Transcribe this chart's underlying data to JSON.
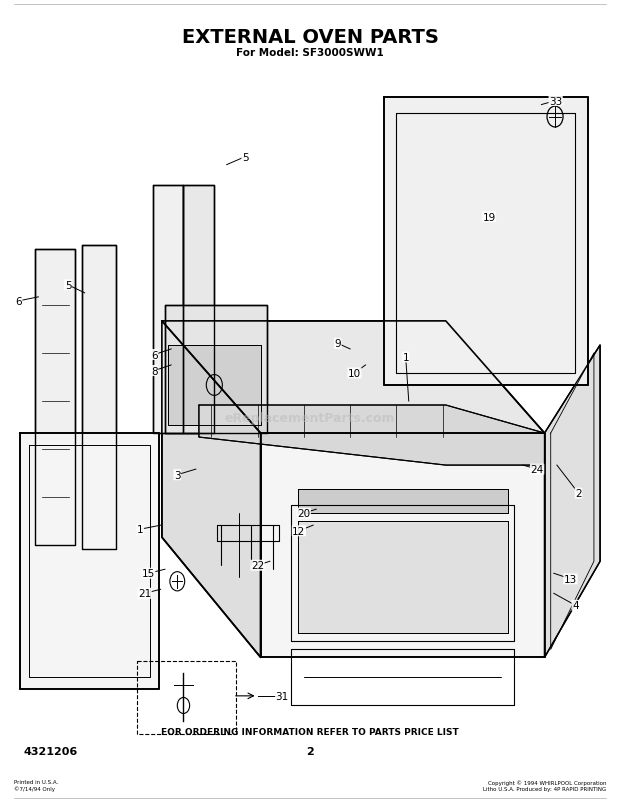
{
  "title": "EXTERNAL OVEN PARTS",
  "subtitle": "For Model: SF3000SWW1",
  "model_number": "4321206",
  "page_number": "2",
  "footer_text": "FOR ORDERING INFORMATION REFER TO PARTS PRICE LIST",
  "watermark": "eReplacementParts.com",
  "bg_color": "#ffffff",
  "copyright_left": "Printed in U.S.A.\n©7/14/94 Only",
  "copyright_right": "Copyright © 1994 WHIRLPOOL Corporation\nLitho U.S.A. Produced by: 4P RAPID PRINTING"
}
